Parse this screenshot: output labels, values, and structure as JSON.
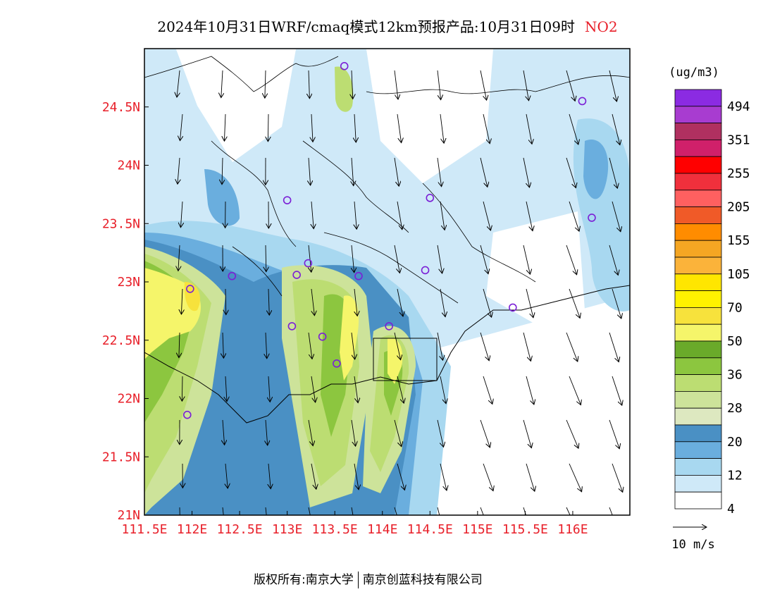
{
  "header": {
    "title": "2024年10月31日WRF/cmaq模式12km预报产品:10月31日09时",
    "species": "NO2"
  },
  "map": {
    "lon_ticks": [
      "111.5E",
      "112E",
      "112.5E",
      "113E",
      "113.5E",
      "114E",
      "114.5E",
      "115E",
      "115.5E",
      "116E"
    ],
    "lat_ticks": [
      "24.5N",
      "24N",
      "23.5N",
      "23N",
      "22.5N",
      "22N",
      "21.5N",
      "21N"
    ],
    "lon_range": [
      111.5,
      116.6
    ],
    "lat_range": [
      21.0,
      25.0
    ],
    "label_color": "#e8202a",
    "station_color": "#7b1fd6"
  },
  "colorbar": {
    "unit": "(ug/m3)",
    "labels": [
      "494",
      "351",
      "255",
      "205",
      "155",
      "105",
      "70",
      "50",
      "36",
      "28",
      "20",
      "12",
      "4"
    ],
    "colors": [
      "#8b2be2",
      "#a83cd0",
      "#b03060",
      "#d0206a",
      "#ff0000",
      "#f0303c",
      "#ff6060",
      "#f05a28",
      "#ff8c00",
      "#f5a623",
      "#fbb33a",
      "#ffe600",
      "#fff200",
      "#f7e23c",
      "#f5f56a",
      "#6aaa2a",
      "#8cc63f",
      "#bcdd72",
      "#cde39a",
      "#dde8c0",
      "#4a90c4",
      "#6aaede",
      "#a8d8f0",
      "#cfe9f8",
      "#ffffff"
    ]
  },
  "wind_legend": {
    "label": "10 m/s"
  },
  "footer": {
    "left": "版权所有:南京大学",
    "right": "南京创蓝科技有限公司"
  }
}
